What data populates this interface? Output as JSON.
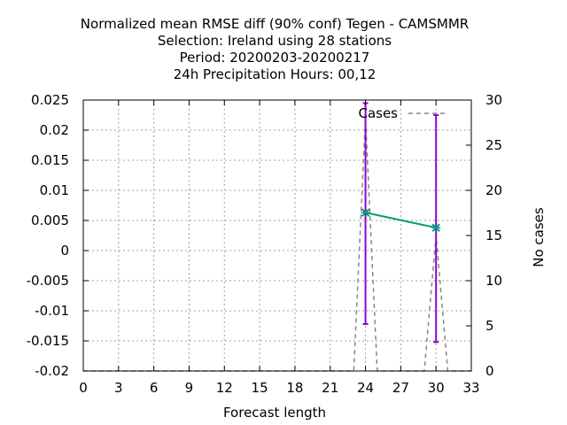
{
  "chart_data": {
    "type": "line",
    "title_lines": [
      "Normalized mean RMSE diff (90% conf) Tegen - CAMSMMR",
      "Selection: Ireland using    28 stations",
      "Period: 20200203-20200217",
      "24h Precipitation   Hours:  00,12"
    ],
    "xlabel": "Forecast length",
    "ylabel": "",
    "y2label": "No cases",
    "xlim": [
      0,
      33
    ],
    "ylim": [
      -0.02,
      0.025
    ],
    "y2lim": [
      0,
      30
    ],
    "x_ticks": [
      "0",
      "3",
      "6",
      "9",
      "12",
      "15",
      "18",
      "21",
      "24",
      "27",
      "30",
      "33"
    ],
    "y_ticks": [
      "-0.02",
      "-0.015",
      "-0.01",
      "-0.005",
      "0",
      "0.005",
      "0.01",
      "0.015",
      "0.02",
      "0.025"
    ],
    "y2_ticks": [
      "0",
      "5",
      "10",
      "15",
      "20",
      "25",
      "30"
    ],
    "grid": true,
    "legend_position": "top-right",
    "series": [
      {
        "name": "",
        "axis": "y",
        "color": "#009e73",
        "x": [
          24,
          30
        ],
        "y": [
          0.0063,
          0.0038
        ],
        "error_low": [
          -0.0122,
          -0.0152
        ],
        "error_high": [
          0.0245,
          0.0225
        ],
        "error_color": "#9400d3"
      },
      {
        "name": "Cases",
        "axis": "y2",
        "color": "#888888",
        "dashed": true,
        "x": [
          0,
          23,
          24,
          25,
          29,
          30,
          31,
          33
        ],
        "y": [
          0,
          0,
          28,
          0,
          0,
          15,
          0,
          0
        ]
      }
    ]
  }
}
